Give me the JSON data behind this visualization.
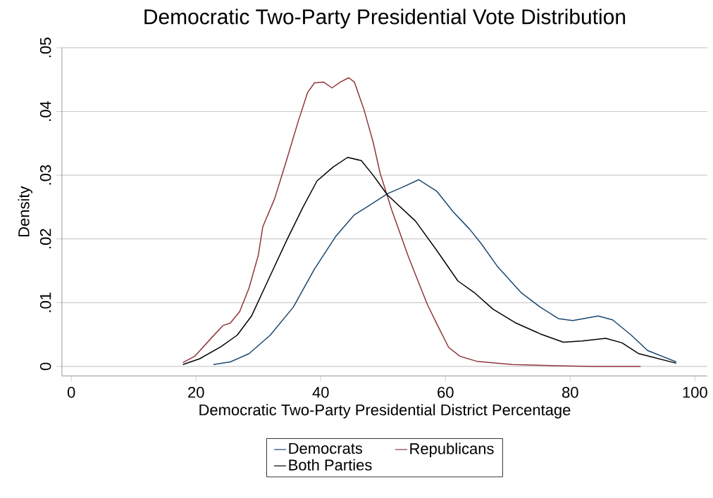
{
  "chart_data": {
    "type": "line",
    "title": "Democratic Two-Party Presidential Vote Distribution",
    "xlabel": "Democratic Two-Party Presidential District Percentage",
    "ylabel": "Density",
    "xlim": [
      -1.5,
      102
    ],
    "ylim": [
      -0.0015,
      0.05
    ],
    "xticks": [
      0,
      20,
      40,
      60,
      80,
      100
    ],
    "yticks": [
      0,
      {
        "value": 0.01,
        "label": ".01"
      },
      {
        "value": 0.02,
        "label": ".02"
      },
      {
        "value": 0.03,
        "label": ".03"
      },
      {
        "value": 0.04,
        "label": ".04"
      },
      {
        "value": 0.05,
        "label": ".05"
      }
    ],
    "grid": "y",
    "legend": "bottom",
    "marker": "none",
    "line_style": "solid",
    "series": [
      {
        "name": "Democrats",
        "color": "#1a476f",
        "x": [
          22.8,
          25.5,
          28.5,
          31.9,
          35.6,
          39.0,
          42.4,
          45.4,
          46.9,
          50.7,
          53.3,
          55.7,
          58.6,
          61.2,
          63.9,
          65.7,
          68.4,
          72.1,
          75.2,
          78.1,
          80.4,
          84.5,
          86.8,
          89.8,
          92.4,
          97.0
        ],
        "values": [
          0.0003,
          0.0007,
          0.002,
          0.0049,
          0.0093,
          0.0153,
          0.0204,
          0.0238,
          0.0247,
          0.0271,
          0.0282,
          0.0293,
          0.0275,
          0.0243,
          0.0215,
          0.0193,
          0.0156,
          0.0116,
          0.0093,
          0.0075,
          0.0072,
          0.0079,
          0.0073,
          0.0049,
          0.0025,
          0.0007
        ]
      },
      {
        "name": "Republicans",
        "color": "#90353b",
        "x": [
          17.9,
          19.8,
          22.5,
          24.3,
          25.5,
          27.0,
          28.5,
          30.0,
          30.7,
          32.6,
          34.5,
          36.4,
          37.9,
          39.0,
          40.5,
          41.8,
          43.1,
          44.5,
          45.4,
          46.9,
          48.4,
          49.5,
          51.4,
          54.1,
          57.1,
          58.6,
          60.5,
          62.3,
          65.0,
          70.7,
          78.1,
          83.7,
          91.3
        ],
        "values": [
          0.0006,
          0.0016,
          0.0045,
          0.0064,
          0.0068,
          0.0086,
          0.0123,
          0.0175,
          0.0219,
          0.0263,
          0.0323,
          0.0385,
          0.043,
          0.0445,
          0.0446,
          0.0437,
          0.0446,
          0.0453,
          0.0446,
          0.0404,
          0.0352,
          0.0304,
          0.0245,
          0.0171,
          0.0097,
          0.0067,
          0.003,
          0.0016,
          0.0008,
          0.0003,
          0.0001,
          0.0,
          0.0
        ]
      },
      {
        "name": "Both Parties",
        "color": "#000000",
        "x": [
          17.9,
          20.6,
          24.0,
          26.6,
          28.9,
          31.5,
          34.5,
          37.1,
          39.4,
          42.0,
          44.3,
          46.5,
          48.4,
          50.7,
          55.2,
          58.6,
          62.0,
          64.6,
          67.6,
          71.3,
          75.2,
          78.9,
          81.9,
          85.7,
          88.3,
          91.0,
          97.0
        ],
        "values": [
          0.0003,
          0.0012,
          0.0031,
          0.0049,
          0.0079,
          0.0134,
          0.0197,
          0.0249,
          0.0291,
          0.0313,
          0.0328,
          0.0323,
          0.03,
          0.0269,
          0.0228,
          0.0182,
          0.0134,
          0.0116,
          0.009,
          0.0068,
          0.0051,
          0.0038,
          0.004,
          0.0044,
          0.0037,
          0.002,
          0.0005
        ]
      }
    ]
  }
}
